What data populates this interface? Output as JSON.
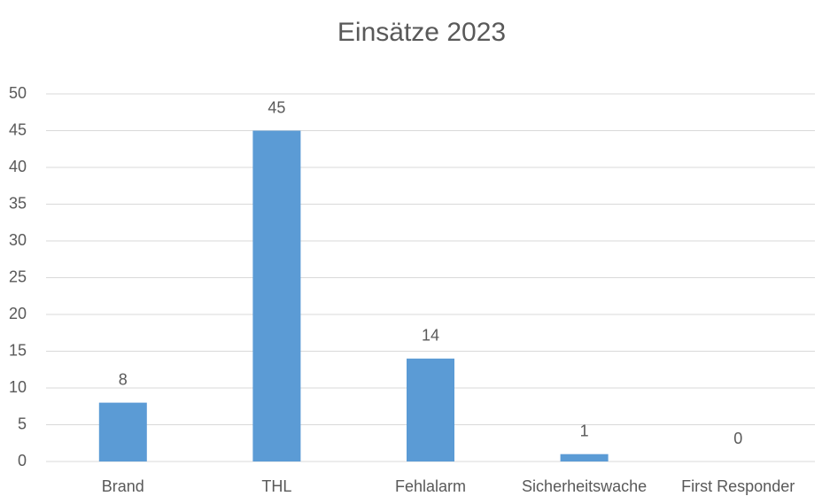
{
  "chart_data": {
    "type": "bar",
    "title": "Einsätze 2023",
    "categories": [
      "Brand",
      "THL",
      "Fehlalarm",
      "Sicherheitswache",
      "First Responder"
    ],
    "values": [
      8,
      45,
      14,
      1,
      0
    ],
    "color": "#5b9bd5",
    "ylim": [
      0,
      50
    ],
    "yticks": [
      0,
      5,
      10,
      15,
      20,
      25,
      30,
      35,
      40,
      45,
      50
    ],
    "grid": true
  }
}
